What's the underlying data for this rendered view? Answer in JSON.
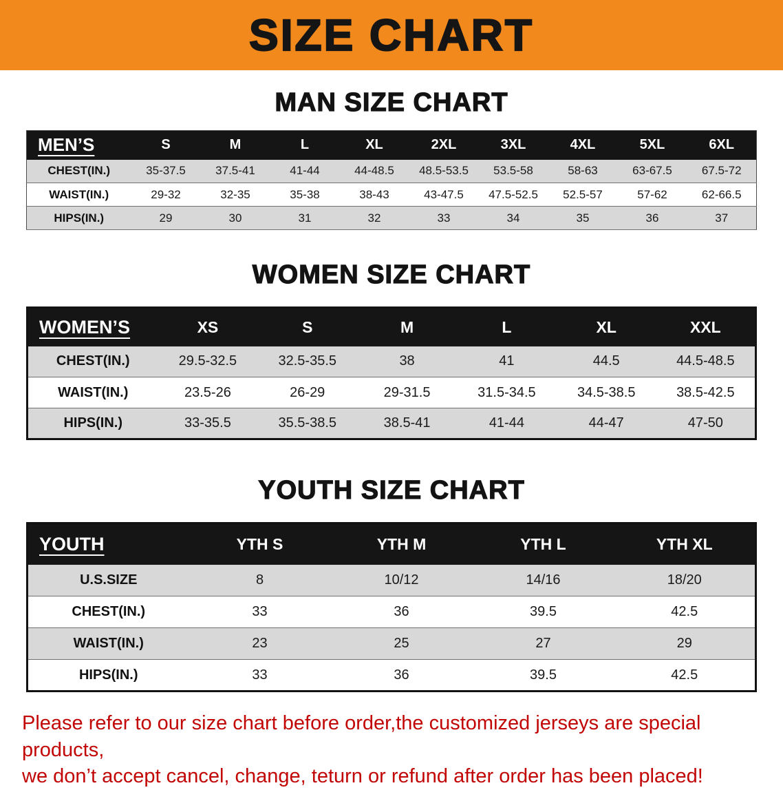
{
  "banner": {
    "title": "SIZE CHART"
  },
  "chart_data": [
    {
      "type": "table",
      "title": "MAN SIZE CHART",
      "columns": [
        "MEN’S",
        "S",
        "M",
        "L",
        "XL",
        "2XL",
        "3XL",
        "4XL",
        "5XL",
        "6XL"
      ],
      "rows": [
        [
          "CHEST(IN.)",
          "35-37.5",
          "37.5-41",
          "41-44",
          "44-48.5",
          "48.5-53.5",
          "53.5-58",
          "58-63",
          "63-67.5",
          "67.5-72"
        ],
        [
          "WAIST(IN.)",
          "29-32",
          "32-35",
          "35-38",
          "38-43",
          "43-47.5",
          "47.5-52.5",
          "52.5-57",
          "57-62",
          "62-66.5"
        ],
        [
          "HIPS(IN.)",
          "29",
          "30",
          "31",
          "32",
          "33",
          "34",
          "35",
          "36",
          "37"
        ]
      ]
    },
    {
      "type": "table",
      "title": "WOMEN SIZE CHART",
      "columns": [
        "WOMEN’S",
        "XS",
        "S",
        "M",
        "L",
        "XL",
        "XXL"
      ],
      "rows": [
        [
          "CHEST(IN.)",
          "29.5-32.5",
          "32.5-35.5",
          "38",
          "41",
          "44.5",
          "44.5-48.5"
        ],
        [
          "WAIST(IN.)",
          "23.5-26",
          "26-29",
          "29-31.5",
          "31.5-34.5",
          "34.5-38.5",
          "38.5-42.5"
        ],
        [
          "HIPS(IN.)",
          "33-35.5",
          "35.5-38.5",
          "38.5-41",
          "41-44",
          "44-47",
          "47-50"
        ]
      ]
    },
    {
      "type": "table",
      "title": "YOUTH SIZE CHART",
      "columns": [
        "YOUTH",
        "YTH S",
        "YTH M",
        "YTH L",
        "YTH XL"
      ],
      "rows": [
        [
          "U.S.SIZE",
          "8",
          "10/12",
          "14/16",
          "18/20"
        ],
        [
          "CHEST(IN.)",
          "33",
          "36",
          "39.5",
          "42.5"
        ],
        [
          "WAIST(IN.)",
          "23",
          "25",
          "27",
          "29"
        ],
        [
          "HIPS(IN.)",
          "33",
          "36",
          "39.5",
          "42.5"
        ]
      ]
    }
  ],
  "disclaimer": {
    "line1": "Please refer to our size chart before order,the customized jerseys are special products,",
    "line2": "we don’t accept cancel, change, teturn or refund after order has been placed!"
  },
  "colors": {
    "banner_orange": "#f2891c",
    "header_black": "#151515",
    "row_stripe_gray": "#d8d8d8",
    "disclaimer_red": "#c20505",
    "text_black": "#111111"
  }
}
